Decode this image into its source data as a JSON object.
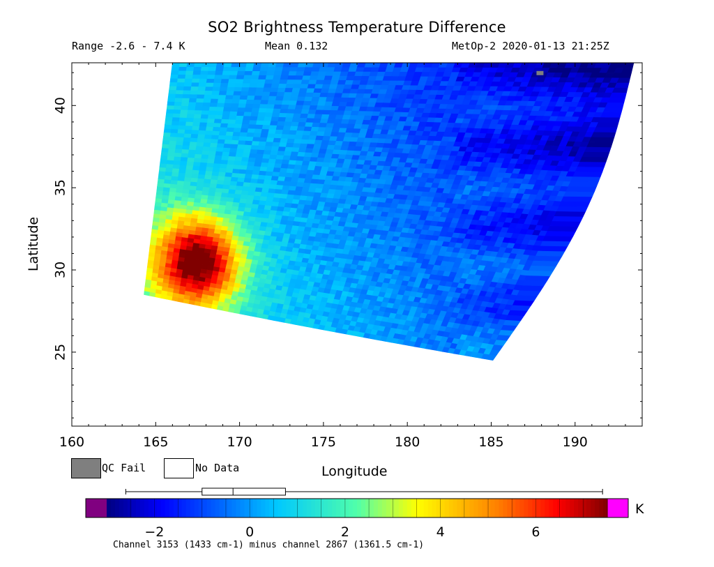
{
  "header": {
    "title": "SO2 Brightness Temperature Difference",
    "range": "Range -2.6 - 7.4 K",
    "mean": "Mean 0.132",
    "satellite_time": "MetOp-2 2020-01-13 21:25Z"
  },
  "legend": {
    "qc_fail": "QC Fail",
    "no_data": "No Data",
    "qc_color": "#7f7f7f"
  },
  "colorbar": {
    "unit": "K",
    "min": -3,
    "max": 7.5,
    "ticks": [
      -2,
      0,
      2,
      4,
      6
    ],
    "tick_labels": [
      "−2",
      "0",
      "2",
      "4",
      "6"
    ],
    "under_color": "#800080",
    "over_color": "#ff00ff",
    "boxplot": {
      "whisker_low": -2.6,
      "q1": -1.0,
      "median": -0.35,
      "q3": 0.75,
      "whisker_high": 7.4
    },
    "footnote": "Channel 3153 (1433 cm-1) minus channel 2867 (1361.5 cm-1)"
  },
  "chart_data": {
    "type": "heatmap",
    "title": "SO2 Brightness Temperature Difference",
    "xlabel": "Longitude",
    "ylabel": "Latitude",
    "xlim": [
      160,
      194
    ],
    "ylim": [
      20.5,
      42.6
    ],
    "x_ticks": [
      160,
      165,
      170,
      175,
      180,
      185,
      190
    ],
    "x_tick_labels": [
      "160",
      "165",
      "170",
      "175",
      "180",
      "185",
      "190"
    ],
    "y_ticks": [
      25,
      30,
      35,
      40
    ],
    "y_tick_labels": [
      "25",
      "30",
      "35",
      "40"
    ],
    "swath_corners": {
      "top_left": [
        166.0,
        42.6
      ],
      "top_right": [
        193.5,
        42.6
      ],
      "bottom_left": [
        164.3,
        28.5
      ],
      "bottom_right": [
        185.1,
        24.5
      ]
    },
    "hotspot": {
      "lon": 167.5,
      "lat": 30.5,
      "peak_value": 7.4
    },
    "grid": false
  }
}
